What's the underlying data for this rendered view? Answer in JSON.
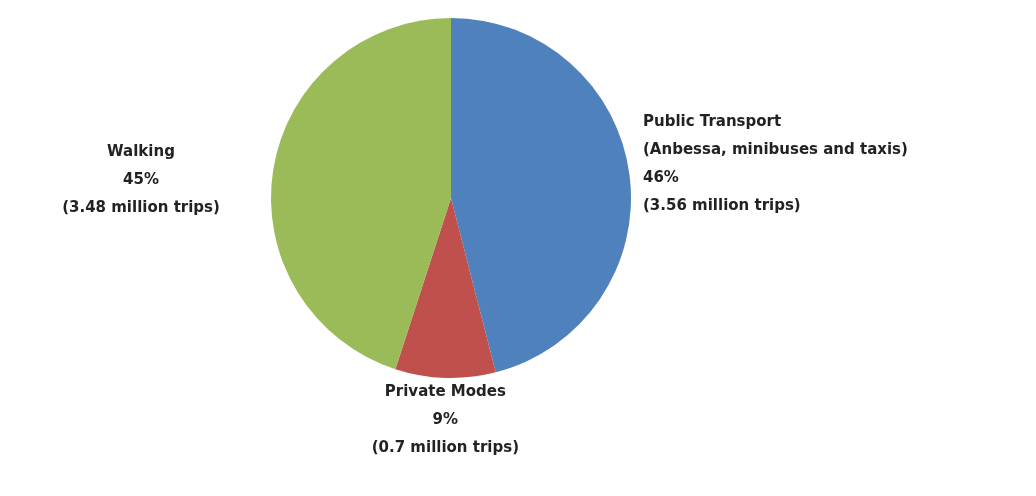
{
  "chart_data": {
    "type": "pie",
    "categories": [
      "Public Transport\n(Anbessa, minibuses and taxis)",
      "Private Modes",
      "Walking"
    ],
    "values": [
      46,
      9,
      45
    ],
    "value_labels": [
      "46%\n(3.56 million trips)",
      "9%\n(0.7 million trips)",
      "45%\n(3.48 million trips)"
    ],
    "colors": [
      "#4f81bd",
      "#c0504d",
      "#9bbb59"
    ],
    "legend": false
  }
}
